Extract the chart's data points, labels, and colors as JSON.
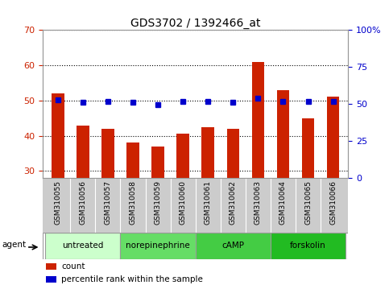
{
  "title": "GDS3702 / 1392466_at",
  "samples": [
    "GSM310055",
    "GSM310056",
    "GSM310057",
    "GSM310058",
    "GSM310059",
    "GSM310060",
    "GSM310061",
    "GSM310062",
    "GSM310063",
    "GSM310064",
    "GSM310065",
    "GSM310066"
  ],
  "counts": [
    52,
    43,
    42,
    38,
    37,
    40.5,
    42.5,
    42,
    61,
    53,
    45,
    51
  ],
  "percentile_ranks": [
    53,
    51,
    51.5,
    51,
    49.5,
    51.5,
    51.5,
    51,
    54,
    52,
    52,
    52
  ],
  "ylim_left": [
    28,
    70
  ],
  "ylim_right": [
    0,
    100
  ],
  "yticks_left": [
    30,
    40,
    50,
    60,
    70
  ],
  "yticks_right": [
    0,
    25,
    50,
    75,
    100
  ],
  "ytick_labels_right": [
    "0",
    "25",
    "50",
    "75",
    "100%"
  ],
  "bar_color": "#cc2200",
  "dot_color": "#0000cc",
  "bar_bottom": 28,
  "groups": [
    {
      "label": "untreated",
      "start": 0,
      "end": 3,
      "color": "#ccffcc"
    },
    {
      "label": "norepinephrine",
      "start": 3,
      "end": 6,
      "color": "#66dd66"
    },
    {
      "label": "cAMP",
      "start": 6,
      "end": 9,
      "color": "#44cc44"
    },
    {
      "label": "forskolin",
      "start": 9,
      "end": 12,
      "color": "#22bb22"
    }
  ],
  "legend_count_label": "count",
  "legend_pct_label": "percentile rank within the sample",
  "agent_label": "agent",
  "xlabel_area_color": "#cccccc",
  "title_fontsize": 10,
  "tick_labelsize": 8,
  "bar_width": 0.5,
  "dot_markersize": 4
}
